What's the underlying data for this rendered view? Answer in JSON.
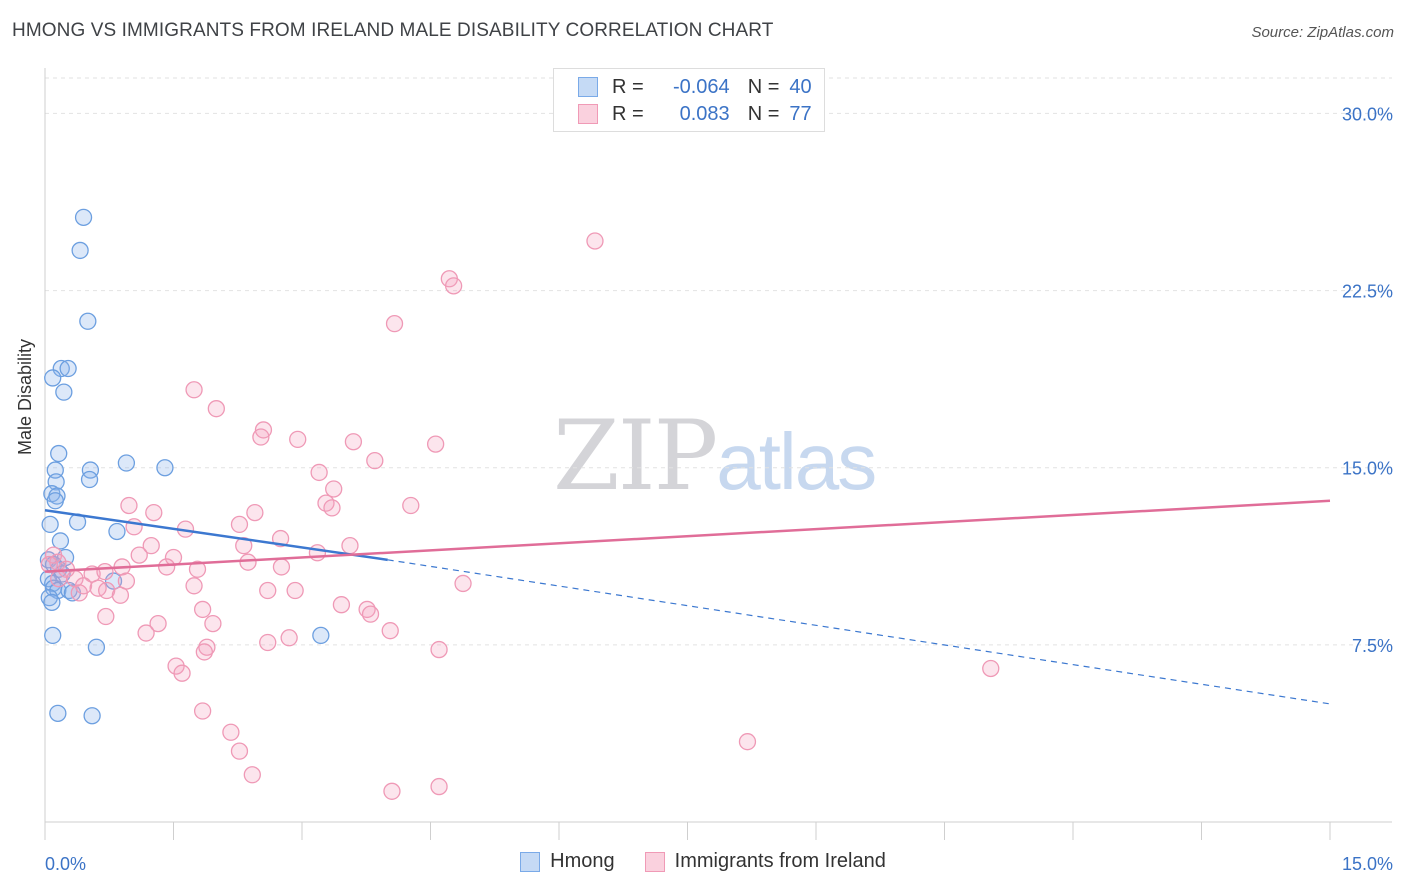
{
  "title": "HMONG VS IMMIGRANTS FROM IRELAND MALE DISABILITY CORRELATION CHART",
  "source": "Source: ZipAtlas.com",
  "watermark": {
    "zip": "ZIP",
    "atlas": "atlas"
  },
  "legend": {
    "r_label": "R =",
    "n_label": "N =",
    "rows": [
      {
        "r": "-0.064",
        "n": "40",
        "color": "#7aaae8",
        "fill": "#c5daf5"
      },
      {
        "r": "0.083",
        "n": "77",
        "color": "#f09ab6",
        "fill": "#fad1de"
      }
    ]
  },
  "chart_data": {
    "type": "scatter",
    "title": "HMONG VS IMMIGRANTS FROM IRELAND MALE DISABILITY CORRELATION CHART",
    "xlabel": "",
    "ylabel": "Male Disability",
    "xlim": [
      0,
      15
    ],
    "ylim": [
      0,
      31.5
    ],
    "x_tick_labels": [
      "0.0%",
      "15.0%"
    ],
    "y_tick_labels": [
      "30.0%",
      "22.5%",
      "15.0%",
      "7.5%"
    ],
    "y_ticks": [
      30,
      22.5,
      15,
      7.5
    ],
    "grid": true,
    "series": [
      {
        "name": "Hmong",
        "color": "#4a86d4",
        "points": [
          [
            0.45,
            25.6
          ],
          [
            0.41,
            24.2
          ],
          [
            0.5,
            21.2
          ],
          [
            0.19,
            19.2
          ],
          [
            0.27,
            19.2
          ],
          [
            0.09,
            18.8
          ],
          [
            0.22,
            18.2
          ],
          [
            0.16,
            15.6
          ],
          [
            0.12,
            14.9
          ],
          [
            0.53,
            14.9
          ],
          [
            0.52,
            14.5
          ],
          [
            0.13,
            14.4
          ],
          [
            0.95,
            15.2
          ],
          [
            1.4,
            15.0
          ],
          [
            0.08,
            13.9
          ],
          [
            0.14,
            13.8
          ],
          [
            0.12,
            13.6
          ],
          [
            0.06,
            12.6
          ],
          [
            0.38,
            12.7
          ],
          [
            0.84,
            12.3
          ],
          [
            0.18,
            11.9
          ],
          [
            0.24,
            11.2
          ],
          [
            0.04,
            11.1
          ],
          [
            0.1,
            10.9
          ],
          [
            0.16,
            10.7
          ],
          [
            0.2,
            10.5
          ],
          [
            0.04,
            10.3
          ],
          [
            0.09,
            10.1
          ],
          [
            0.1,
            9.9
          ],
          [
            0.15,
            9.8
          ],
          [
            0.28,
            9.8
          ],
          [
            0.32,
            9.7
          ],
          [
            0.05,
            9.5
          ],
          [
            0.08,
            9.3
          ],
          [
            0.8,
            10.2
          ],
          [
            0.09,
            7.9
          ],
          [
            0.6,
            7.4
          ],
          [
            3.22,
            7.9
          ],
          [
            0.15,
            4.6
          ],
          [
            0.55,
            4.5
          ]
        ],
        "trend": {
          "r": "-0.064",
          "x": [
            0,
            4
          ],
          "y": [
            13.2,
            11.1
          ],
          "dashed_to": [
            15,
            5.0
          ]
        }
      },
      {
        "name": "Immigrants from Ireland",
        "color": "#e77fa3",
        "points": [
          [
            6.42,
            24.6
          ],
          [
            4.72,
            23.0
          ],
          [
            4.77,
            22.7
          ],
          [
            4.08,
            21.1
          ],
          [
            1.74,
            18.3
          ],
          [
            2.0,
            17.5
          ],
          [
            2.55,
            16.6
          ],
          [
            2.52,
            16.3
          ],
          [
            2.95,
            16.2
          ],
          [
            3.6,
            16.1
          ],
          [
            4.56,
            16.0
          ],
          [
            3.85,
            15.3
          ],
          [
            3.2,
            14.8
          ],
          [
            3.37,
            14.1
          ],
          [
            3.28,
            13.5
          ],
          [
            3.35,
            13.3
          ],
          [
            4.27,
            13.4
          ],
          [
            0.98,
            13.4
          ],
          [
            1.27,
            13.1
          ],
          [
            2.45,
            13.1
          ],
          [
            2.27,
            12.6
          ],
          [
            1.04,
            12.5
          ],
          [
            1.64,
            12.4
          ],
          [
            2.75,
            12.0
          ],
          [
            1.24,
            11.7
          ],
          [
            2.32,
            11.7
          ],
          [
            3.56,
            11.7
          ],
          [
            1.1,
            11.3
          ],
          [
            1.5,
            11.2
          ],
          [
            3.18,
            11.4
          ],
          [
            0.1,
            11.3
          ],
          [
            0.15,
            11.0
          ],
          [
            0.05,
            10.9
          ],
          [
            0.25,
            10.7
          ],
          [
            0.55,
            10.5
          ],
          [
            0.7,
            10.6
          ],
          [
            0.9,
            10.8
          ],
          [
            1.42,
            10.8
          ],
          [
            1.78,
            10.7
          ],
          [
            2.37,
            11.0
          ],
          [
            2.76,
            10.8
          ],
          [
            0.16,
            10.3
          ],
          [
            0.35,
            10.3
          ],
          [
            0.45,
            10.0
          ],
          [
            0.62,
            9.9
          ],
          [
            0.72,
            9.8
          ],
          [
            0.88,
            9.6
          ],
          [
            0.95,
            10.2
          ],
          [
            1.74,
            10.0
          ],
          [
            0.4,
            9.7
          ],
          [
            2.6,
            9.8
          ],
          [
            2.92,
            9.8
          ],
          [
            4.88,
            10.1
          ],
          [
            1.84,
            9.0
          ],
          [
            3.46,
            9.2
          ],
          [
            3.76,
            9.0
          ],
          [
            3.8,
            8.8
          ],
          [
            0.71,
            8.7
          ],
          [
            1.32,
            8.4
          ],
          [
            1.96,
            8.4
          ],
          [
            1.18,
            8.0
          ],
          [
            4.03,
            8.1
          ],
          [
            2.85,
            7.8
          ],
          [
            2.6,
            7.6
          ],
          [
            1.89,
            7.4
          ],
          [
            1.86,
            7.2
          ],
          [
            4.6,
            7.3
          ],
          [
            1.53,
            6.6
          ],
          [
            1.6,
            6.3
          ],
          [
            11.04,
            6.5
          ],
          [
            1.84,
            4.7
          ],
          [
            2.17,
            3.8
          ],
          [
            2.27,
            3.0
          ],
          [
            8.2,
            3.4
          ],
          [
            4.05,
            1.3
          ],
          [
            4.6,
            1.5
          ],
          [
            2.42,
            2.0
          ]
        ],
        "trend": {
          "r": "0.083",
          "x": [
            0,
            15
          ],
          "y": [
            10.6,
            13.6
          ]
        }
      }
    ]
  }
}
